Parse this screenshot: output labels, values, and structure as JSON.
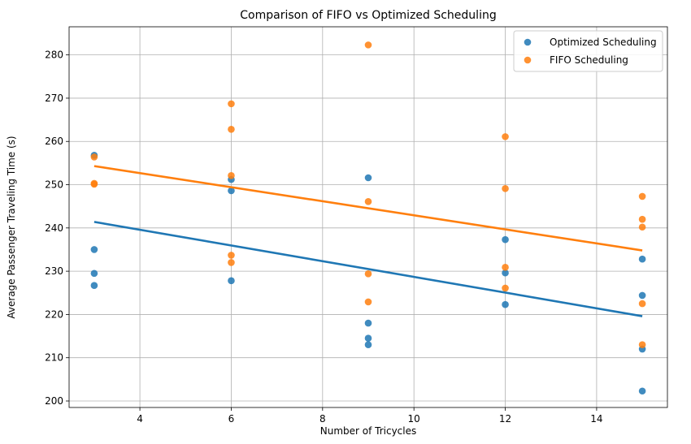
{
  "chart_data": {
    "type": "scatter",
    "title": "Comparison of FIFO vs Optimized Scheduling",
    "xlabel": "Number of Tricycles",
    "ylabel": "Average Passenger Traveling Time (s)",
    "xlim": [
      2.45,
      15.55
    ],
    "ylim": [
      198.5,
      286.5
    ],
    "xticks": [
      4,
      6,
      8,
      10,
      12,
      14
    ],
    "yticks": [
      200,
      210,
      220,
      230,
      240,
      250,
      260,
      270,
      280
    ],
    "grid": true,
    "legend_position": "top-right",
    "series": [
      {
        "name": "Optimized Scheduling",
        "color": "#1f77b4",
        "points": [
          [
            3,
            256.8
          ],
          [
            3,
            235.0
          ],
          [
            3,
            229.5
          ],
          [
            3,
            226.7
          ],
          [
            6,
            251.2
          ],
          [
            6,
            248.6
          ],
          [
            6,
            227.8
          ],
          [
            9,
            251.6
          ],
          [
            9,
            218.0
          ],
          [
            9,
            214.5
          ],
          [
            9,
            213.0
          ],
          [
            12,
            237.3
          ],
          [
            12,
            229.6
          ],
          [
            12,
            222.3
          ],
          [
            15,
            232.8
          ],
          [
            15,
            224.4
          ],
          [
            15,
            212.0
          ],
          [
            15,
            202.3
          ]
        ],
        "trend": {
          "x": [
            3,
            15
          ],
          "y": [
            241.4,
            219.6
          ]
        }
      },
      {
        "name": "FIFO Scheduling",
        "color": "#ff7f0e",
        "points": [
          [
            3,
            256.4
          ],
          [
            3,
            250.3
          ],
          [
            3,
            250.1
          ],
          [
            6,
            268.7
          ],
          [
            6,
            262.8
          ],
          [
            6,
            252.1
          ],
          [
            6,
            233.7
          ],
          [
            6,
            232.0
          ],
          [
            9,
            282.3
          ],
          [
            9,
            246.1
          ],
          [
            9,
            229.4
          ],
          [
            9,
            222.9
          ],
          [
            12,
            261.1
          ],
          [
            12,
            249.1
          ],
          [
            12,
            230.9
          ],
          [
            12,
            226.1
          ],
          [
            15,
            247.3
          ],
          [
            15,
            242.0
          ],
          [
            15,
            240.2
          ],
          [
            15,
            222.5
          ],
          [
            15,
            213.0
          ]
        ],
        "trend": {
          "x": [
            3,
            15
          ],
          "y": [
            254.3,
            234.8
          ]
        }
      }
    ]
  }
}
